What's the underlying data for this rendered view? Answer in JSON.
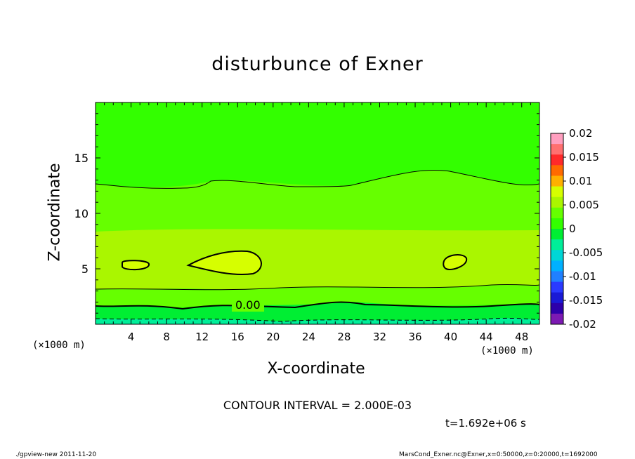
{
  "chart_data": {
    "type": "contour",
    "title": "disturbunce of Exner",
    "xlabel": "X-coordinate",
    "ylabel": "Z-coordinate",
    "x_unit_label": "(×1000 m)",
    "x_range": [
      0,
      50
    ],
    "y_range": [
      0,
      20
    ],
    "x_ticks": [
      4,
      8,
      12,
      16,
      20,
      24,
      28,
      32,
      36,
      40,
      44,
      48
    ],
    "y_ticks": [
      5,
      10,
      15
    ],
    "colorbar": {
      "ticks": [
        "0.02",
        "0.015",
        "0.01",
        "0.005",
        "0",
        "-0.005",
        "-0.01",
        "-0.015",
        "-0.02"
      ],
      "range": [
        -0.02,
        0.02
      ],
      "colors": [
        "#ff9fbf",
        "#ff7070",
        "#ff2a2a",
        "#ff6a00",
        "#ffb000",
        "#d6ff00",
        "#aaf600",
        "#66ff00",
        "#33ff00",
        "#00ee33",
        "#00ee99",
        "#00d6d6",
        "#00b0ff",
        "#2080ff",
        "#2a3aff",
        "#1a1ad6",
        "#2d00aa",
        "#7c1ab3"
      ]
    },
    "contour_label": "0.00",
    "contour_interval": "2.000E-03",
    "field_levels": {
      "top_region": 0.0005,
      "upper_band": 0.002,
      "mid_band": 0.004,
      "max_cells": 0.006,
      "lower_band": 0.001,
      "near_surface": -0.001,
      "surface": -0.002
    }
  },
  "annotations": {
    "contour_interval_text": "CONTOUR INTERVAL = 2.000E-03",
    "time_text": "t=1.692e+06 s",
    "footer_left": "./gpview-new  2011-11-20",
    "footer_right": "MarsCond_Exner.nc@Exner,x=0:50000,z=0:20000,t=1692000"
  }
}
